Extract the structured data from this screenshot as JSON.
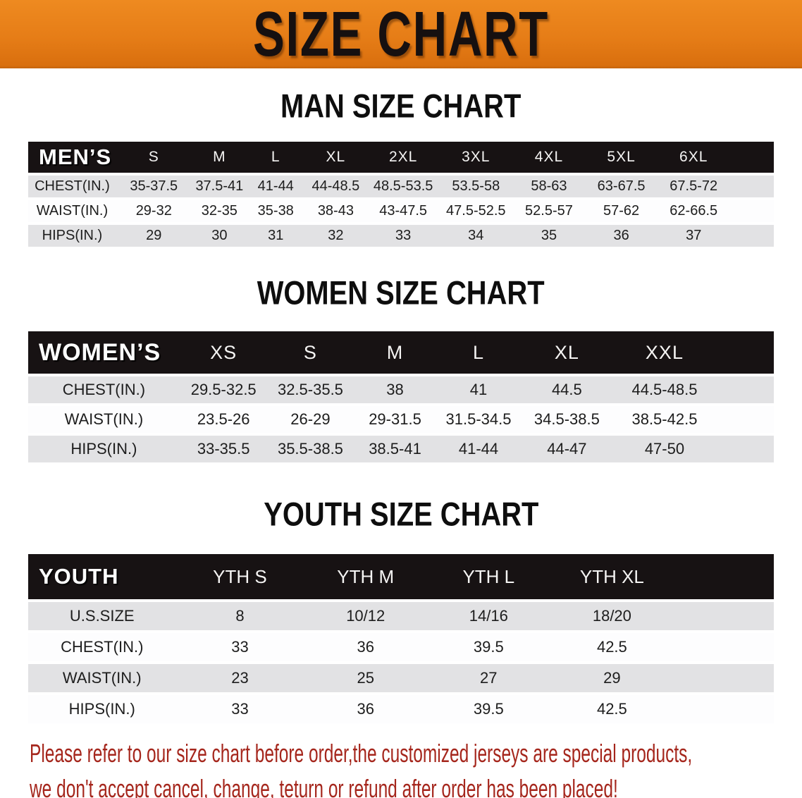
{
  "banner": {
    "title": "SIZE CHART"
  },
  "tables": [
    {
      "id": "men",
      "title": "MAN SIZE CHART",
      "corner_label": "MEN’S",
      "columns": [
        "S",
        "M",
        "L",
        "XL",
        "2XL",
        "3XL",
        "4XL",
        "5XL",
        "6XL"
      ],
      "rows": [
        {
          "label": "CHEST(IN.)",
          "values": [
            "35-37.5",
            "37.5-41",
            "41-44",
            "44-48.5",
            "48.5-53.5",
            "53.5-58",
            "58-63",
            "63-67.5",
            "67.5-72"
          ]
        },
        {
          "label": "WAIST(IN.)",
          "values": [
            "29-32",
            "32-35",
            "35-38",
            "38-43",
            "43-47.5",
            "47.5-52.5",
            "52.5-57",
            "57-62",
            "62-66.5"
          ]
        },
        {
          "label": "HIPS(IN.)",
          "values": [
            "29",
            "30",
            "31",
            "32",
            "33",
            "34",
            "35",
            "36",
            "37"
          ]
        }
      ]
    },
    {
      "id": "women",
      "title": "WOMEN SIZE CHART",
      "corner_label": "WOMEN’S",
      "columns": [
        "XS",
        "S",
        "M",
        "L",
        "XL",
        "XXL"
      ],
      "rows": [
        {
          "label": "CHEST(IN.)",
          "values": [
            "29.5-32.5",
            "32.5-35.5",
            "38",
            "41",
            "44.5",
            "44.5-48.5"
          ]
        },
        {
          "label": "WAIST(IN.)",
          "values": [
            "23.5-26",
            "26-29",
            "29-31.5",
            "31.5-34.5",
            "34.5-38.5",
            "38.5-42.5"
          ]
        },
        {
          "label": "HIPS(IN.)",
          "values": [
            "33-35.5",
            "35.5-38.5",
            "38.5-41",
            "41-44",
            "44-47",
            "47-50"
          ]
        }
      ]
    },
    {
      "id": "youth",
      "title": "YOUTH SIZE CHART",
      "corner_label": "YOUTH",
      "columns": [
        "YTH S",
        "YTH M",
        "YTH L",
        "YTH XL"
      ],
      "rows": [
        {
          "label": "U.S.SIZE",
          "values": [
            "8",
            "10/12",
            "14/16",
            "18/20"
          ]
        },
        {
          "label": "CHEST(IN.)",
          "values": [
            "33",
            "36",
            "39.5",
            "42.5"
          ]
        },
        {
          "label": "WAIST(IN.)",
          "values": [
            "23",
            "25",
            "27",
            "29"
          ]
        },
        {
          "label": "HIPS(IN.)",
          "values": [
            "33",
            "36",
            "39.5",
            "42.5"
          ]
        }
      ]
    }
  ],
  "disclaimer": {
    "lines": [
      "Please refer to our size chart before order,the customized jerseys are special products,",
      "we don't accept cancel, change, teturn or refund after order has been placed!"
    ]
  },
  "colors": {
    "banner_orange": "#e67d17",
    "header_black": "#171213",
    "stripe_gray": "#e2e2e4",
    "disclaimer_red": "#a5261c"
  }
}
